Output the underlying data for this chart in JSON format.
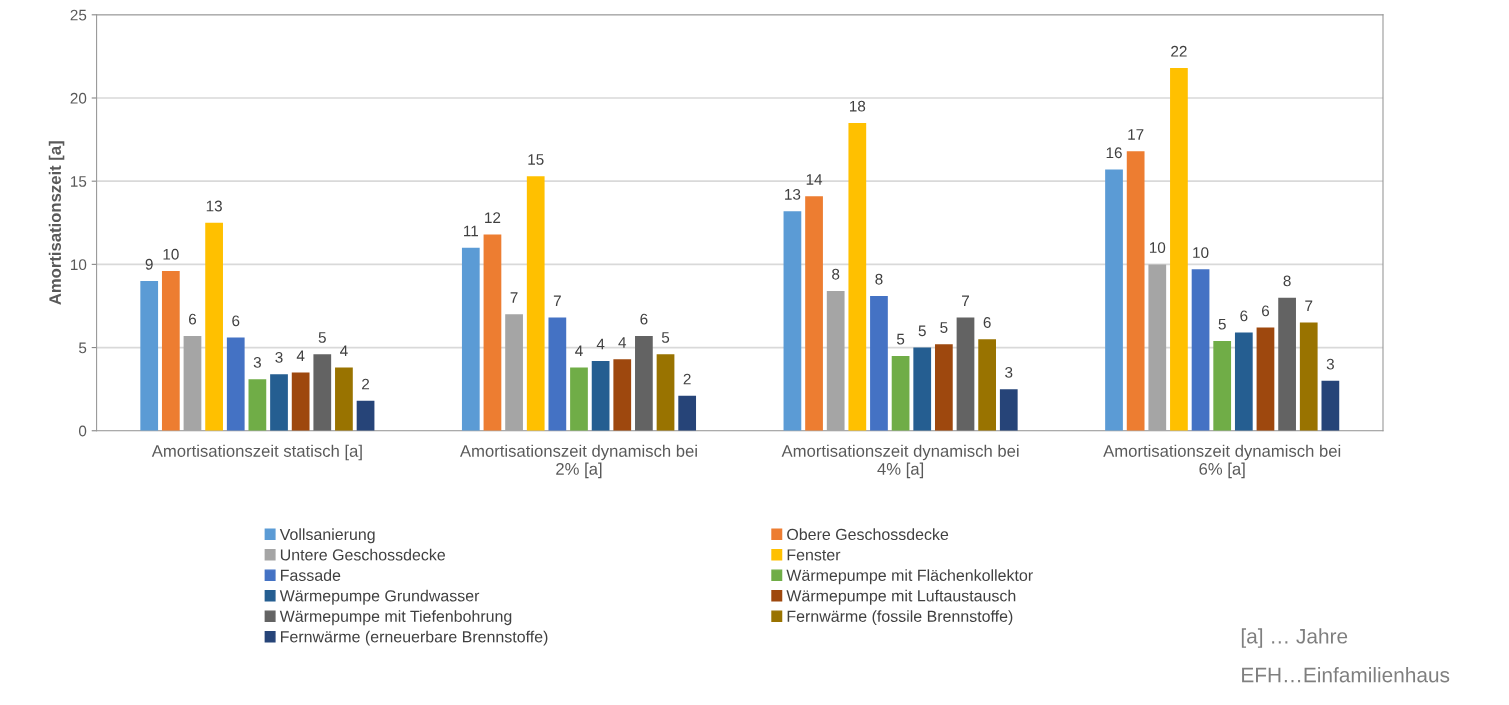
{
  "chart_data": {
    "type": "bar",
    "ylabel": "Amortisationszeit [a]",
    "categories": [
      "Amortisationszeit statisch [a]",
      "Amortisationszeit dynamisch bei 2% [a]",
      "Amortisationszeit dynamisch bei 4% [a]",
      "Amortisationszeit dynamisch bei 6% [a]"
    ],
    "series": [
      {
        "name": "Vollsanierung",
        "color": "#5b9bd5",
        "values": [
          9.0,
          11.0,
          13.2,
          15.7
        ],
        "value_labels": [
          "9",
          "11",
          "13",
          "16"
        ]
      },
      {
        "name": "Obere Geschossdecke",
        "color": "#ed7d31",
        "values": [
          9.6,
          11.8,
          14.1,
          16.8
        ],
        "value_labels": [
          "10",
          "12",
          "14",
          "17"
        ]
      },
      {
        "name": "Untere Geschossdecke",
        "color": "#a5a5a5",
        "values": [
          5.7,
          7.0,
          8.4,
          10.0
        ],
        "value_labels": [
          "6",
          "7",
          "8",
          "10"
        ]
      },
      {
        "name": "Fenster",
        "color": "#ffc000",
        "values": [
          12.5,
          15.3,
          18.5,
          21.8
        ],
        "value_labels": [
          "13",
          "15",
          "18",
          "22"
        ]
      },
      {
        "name": "Fassade",
        "color": "#4472c4",
        "values": [
          5.6,
          6.8,
          8.1,
          9.7
        ],
        "value_labels": [
          "6",
          "7",
          "8",
          "10"
        ]
      },
      {
        "name": "Wärmepumpe mit Flächenkollektor",
        "color": "#70ad47",
        "values": [
          3.1,
          3.8,
          4.5,
          5.4
        ],
        "value_labels": [
          "3",
          "4",
          "5",
          "5"
        ]
      },
      {
        "name": "Wärmepumpe Grundwasser",
        "color": "#255e91",
        "values": [
          3.4,
          4.2,
          5.0,
          5.9
        ],
        "value_labels": [
          "3",
          "4",
          "5",
          "6"
        ]
      },
      {
        "name": "Wärmepumpe mit Luftaustausch",
        "color": "#9e480e",
        "values": [
          3.5,
          4.3,
          5.2,
          6.2
        ],
        "value_labels": [
          "4",
          "4",
          "5",
          "6"
        ]
      },
      {
        "name": "Wärmepumpe mit Tiefenbohrung",
        "color": "#636363",
        "values": [
          4.6,
          5.7,
          6.8,
          8.0
        ],
        "value_labels": [
          "5",
          "6",
          "7",
          "8"
        ]
      },
      {
        "name": "Fernwärme (fossile Brennstoffe)",
        "color": "#997300",
        "values": [
          3.8,
          4.6,
          5.5,
          6.5
        ],
        "value_labels": [
          "4",
          "5",
          "6",
          "7"
        ]
      },
      {
        "name": "Fernwärme (erneuerbare Brennstoffe)",
        "color": "#264478",
        "values": [
          1.8,
          2.1,
          2.5,
          3.0
        ],
        "value_labels": [
          "2",
          "2",
          "3",
          "3"
        ]
      }
    ],
    "ylim": [
      0,
      25
    ],
    "yticks": [
      0,
      5,
      10,
      15,
      20,
      25
    ],
    "grid": "y",
    "legend": "bottom",
    "annotations": [
      "[a] … Jahre",
      "EFH…Einfamilienhaus"
    ]
  }
}
